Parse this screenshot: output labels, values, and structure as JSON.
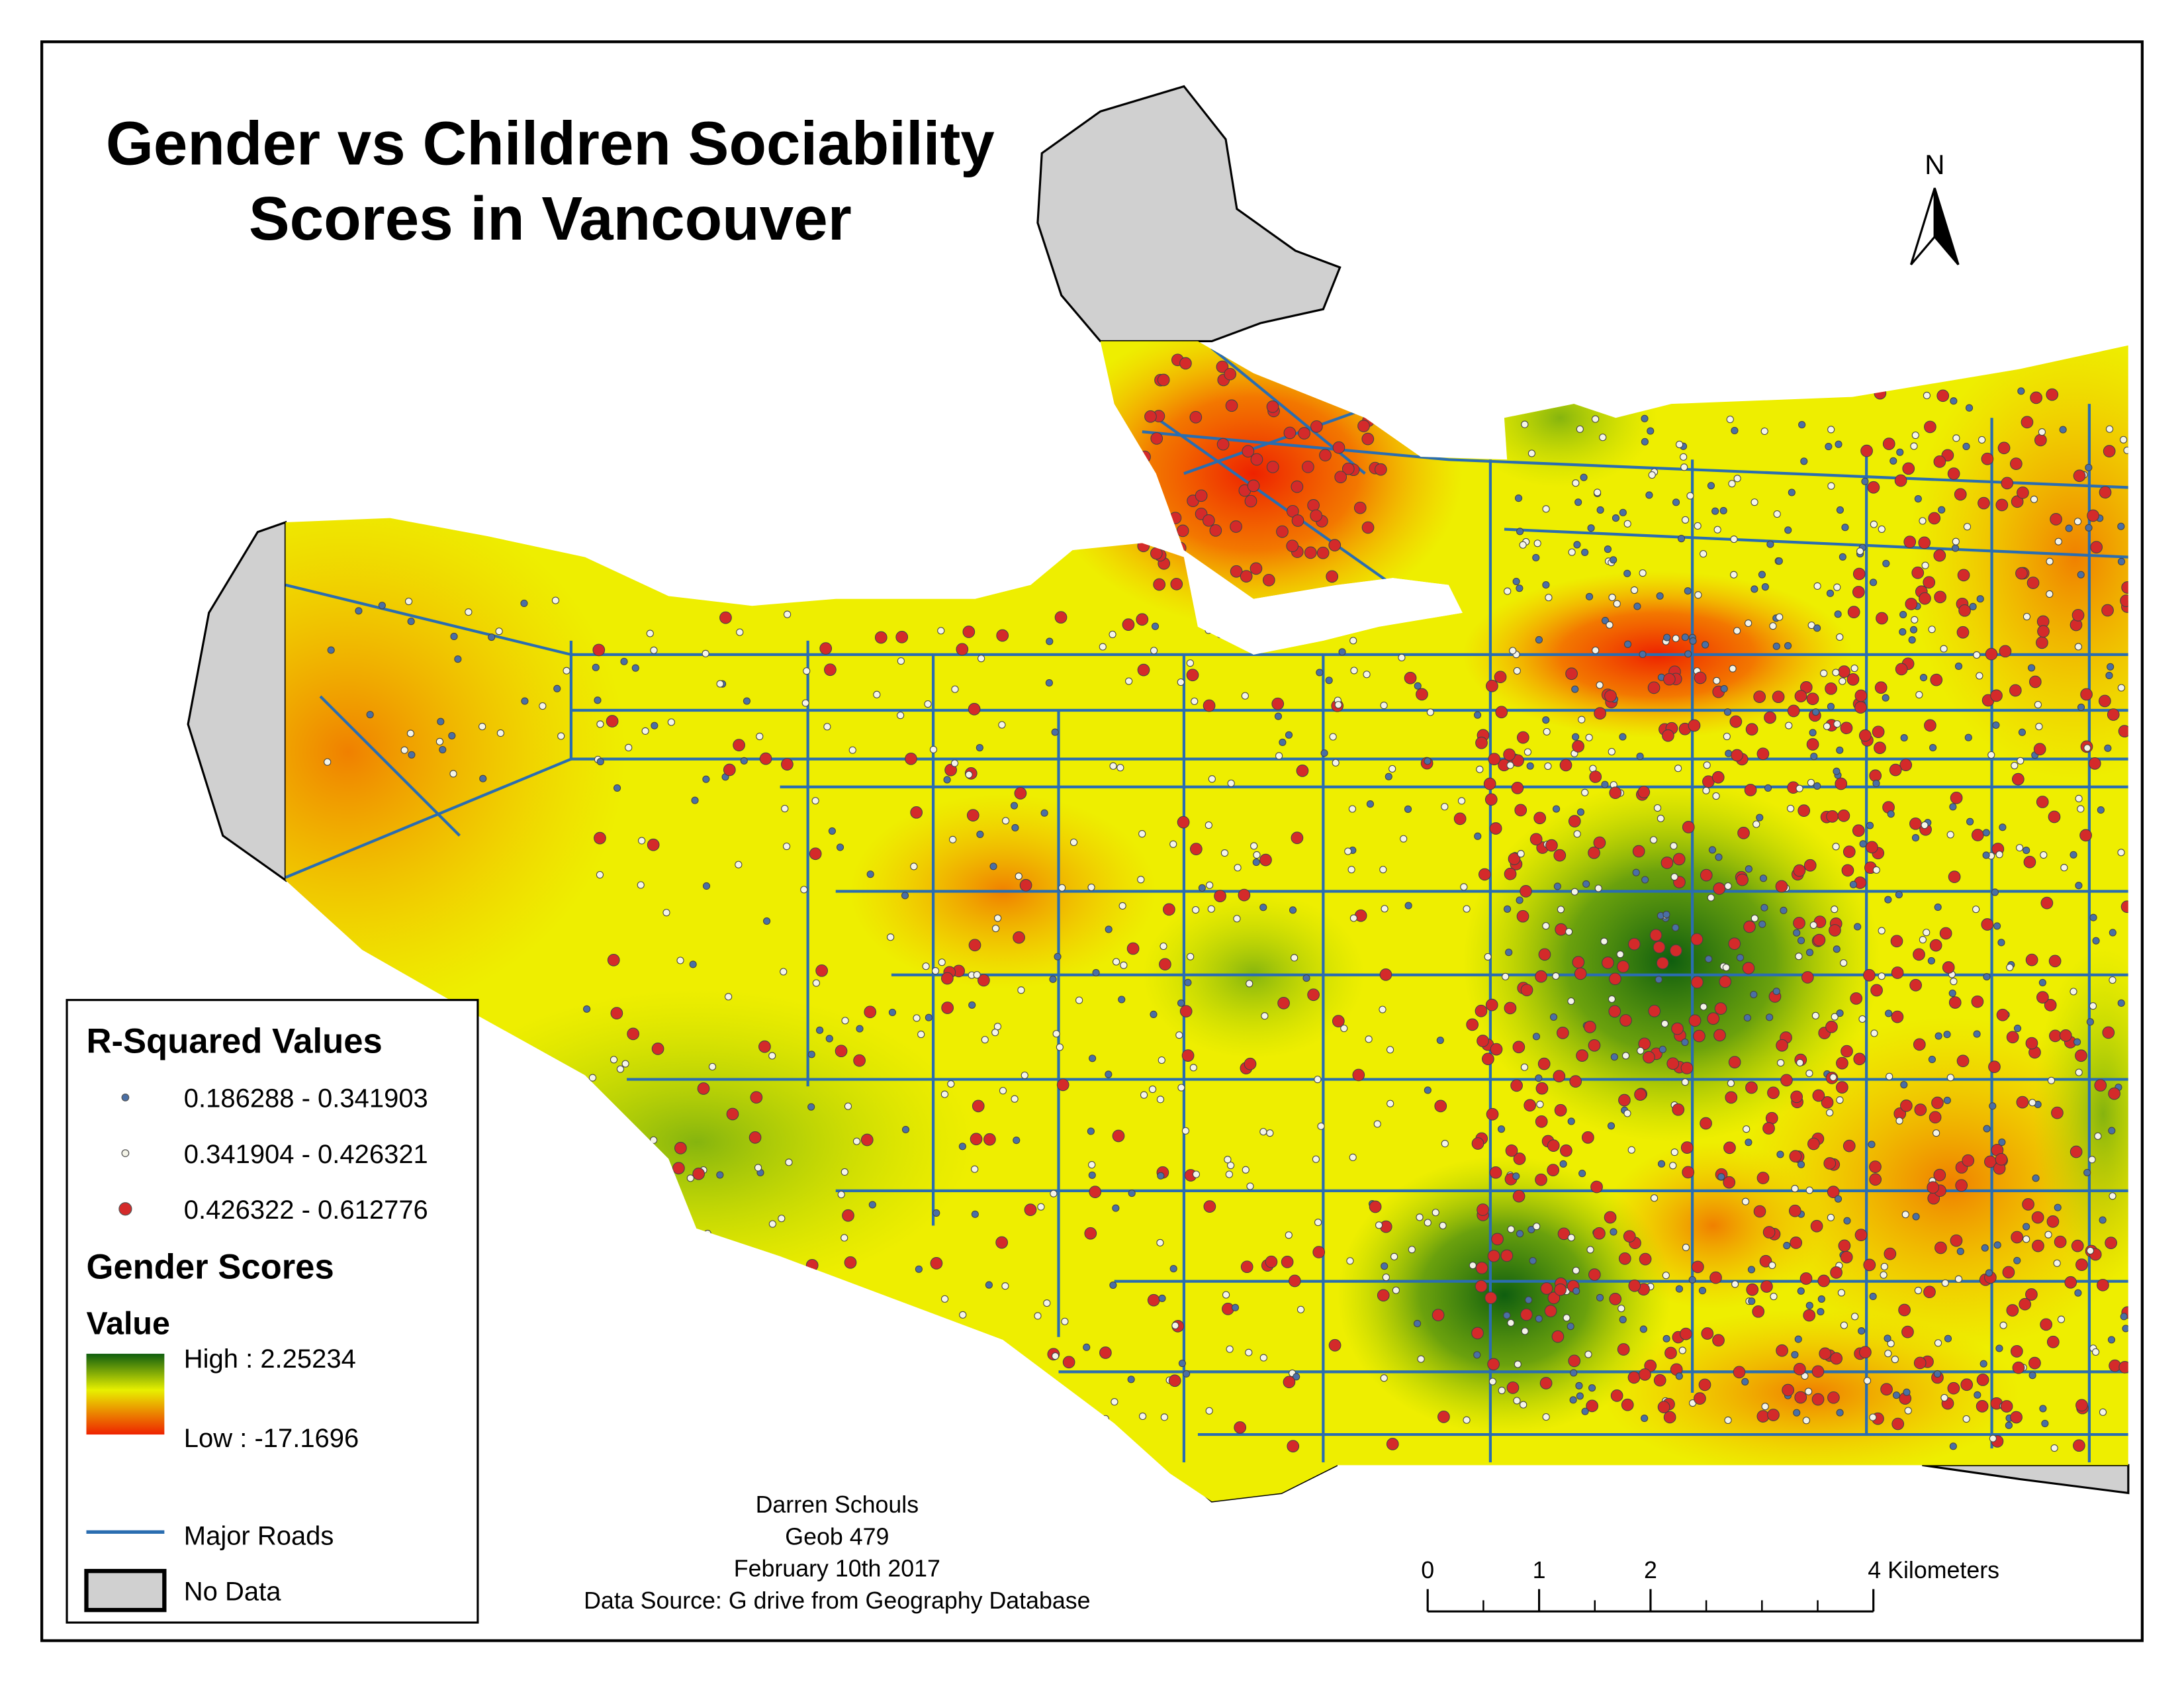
{
  "title": [
    "Gender vs Children Sociability",
    "Scores in Vancouver"
  ],
  "north_arrow": "N",
  "legend": {
    "r_squared": {
      "title": "R-Squared Values",
      "classes": [
        {
          "label": "0.186288 - 0.341903",
          "color": "#4a6fa5"
        },
        {
          "label": "0.341904 - 0.426321",
          "color": "#f4f4e8"
        },
        {
          "label": "0.426322 - 0.612776",
          "color": "#d42a2a"
        }
      ]
    },
    "gender_scores": {
      "title": "Gender Scores",
      "subtitle": "Value",
      "high": "High : 2.25234",
      "low": "Low : -17.1696"
    },
    "major_roads": "Major Roads",
    "no_data": "No Data"
  },
  "credits": [
    "Darren Schouls",
    "Geob 479",
    "February 10th 2017",
    "Data Source: G drive from Geography Database"
  ],
  "scale_bar": {
    "ticks": [
      0,
      1,
      2,
      {
        "value": 4,
        "label": "4 Kilometers"
      }
    ]
  }
}
